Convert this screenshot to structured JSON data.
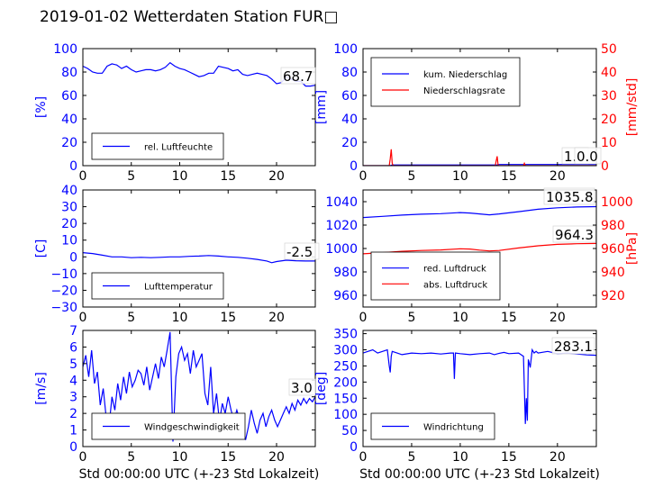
{
  "title": "2019-01-02 Wetterdaten Station FUR□",
  "colors": {
    "primary": "#0000ff",
    "secondary": "#ff0000",
    "windspeed_gust": "#8888ff",
    "axis": "#000000"
  },
  "chart_data": [
    {
      "type": "line",
      "xlabel": "",
      "ylabel": "[%]",
      "xlim": [
        0,
        24
      ],
      "ylim": [
        0,
        100
      ],
      "xticks": [
        "0",
        "5",
        "10",
        "15",
        "20"
      ],
      "yticks": [
        "0",
        "20",
        "40",
        "60",
        "80",
        "100"
      ],
      "legend": [
        "rel. Luftfeuchte"
      ],
      "legend_position": "lower-left",
      "last_value_label": "68.7",
      "series": [
        {
          "name": "rel. Luftfeuchte",
          "axis": "left",
          "color": "#0000ff",
          "x": [
            0,
            0.5,
            1,
            1.5,
            2,
            2.5,
            3,
            3.5,
            4,
            4.5,
            5,
            5.5,
            6,
            6.5,
            7,
            7.5,
            8,
            8.5,
            9,
            9.5,
            10,
            10.5,
            11,
            11.5,
            12,
            12.5,
            13,
            13.5,
            14,
            14.5,
            15,
            15.5,
            16,
            16.5,
            17,
            17.5,
            18,
            18.5,
            19,
            19.5,
            20,
            20.5,
            21,
            21.5,
            22,
            22.5,
            23,
            23.5,
            24
          ],
          "y": [
            85,
            83,
            80,
            79,
            79,
            85,
            87,
            86,
            83,
            85,
            82,
            80,
            81,
            82,
            82,
            81,
            82,
            84,
            88,
            85,
            83,
            82,
            80,
            78,
            76,
            77,
            79,
            79,
            85,
            84,
            83,
            81,
            82,
            78,
            77,
            78,
            79,
            78,
            77,
            74,
            70,
            71,
            76,
            74,
            72,
            72,
            68,
            68,
            68.7
          ]
        }
      ]
    },
    {
      "type": "line",
      "xlabel": "",
      "ylabel": "[mm]",
      "ylabel_right": "[mm/std]",
      "xlim": [
        0,
        24
      ],
      "ylim": [
        0,
        100
      ],
      "ylim_right": [
        0,
        50
      ],
      "xticks": [
        "0",
        "5",
        "10",
        "15",
        "20"
      ],
      "yticks": [
        "0",
        "20",
        "40",
        "60",
        "80",
        "100"
      ],
      "yticks_right": [
        "0",
        "10",
        "20",
        "30",
        "40",
        "50"
      ],
      "legend": [
        "kum. Niederschlag",
        "Niederschlagsrate"
      ],
      "legend_position": "top-left",
      "last_value_label": "1.0",
      "last_value_label_right": "0.0",
      "series": [
        {
          "name": "kum. Niederschlag",
          "axis": "left",
          "color": "#0000ff",
          "x": [
            0,
            2.8,
            3.0,
            13.8,
            14.0,
            24
          ],
          "y": [
            0,
            0,
            0.6,
            0.6,
            1.0,
            1.0
          ]
        },
        {
          "name": "Niederschlagsrate",
          "axis": "right",
          "color": "#ff0000",
          "x": [
            0,
            2.7,
            2.8,
            2.9,
            3.0,
            3.1,
            3.2,
            3.4,
            13.6,
            13.7,
            13.8,
            13.9,
            14.0,
            16.5,
            16.6,
            16.7,
            24
          ],
          "y": [
            0,
            0,
            3,
            7,
            1,
            0,
            0,
            0,
            0,
            2,
            4,
            0,
            0,
            0,
            1,
            0,
            0
          ]
        }
      ]
    },
    {
      "type": "line",
      "xlabel": "",
      "ylabel": "[C]",
      "xlim": [
        0,
        24
      ],
      "ylim": [
        -30,
        40
      ],
      "xticks": [
        "0",
        "5",
        "10",
        "15",
        "20"
      ],
      "yticks": [
        "−30",
        "−20",
        "−10",
        "0",
        "10",
        "20",
        "30",
        "40"
      ],
      "legend": [
        "Lufttemperatur"
      ],
      "legend_position": "lower-left",
      "last_value_label": "-2.5",
      "series": [
        {
          "name": "Lufttemperatur",
          "axis": "left",
          "color": "#0000ff",
          "x": [
            0,
            1,
            2,
            3,
            4,
            5,
            6,
            7,
            8,
            9,
            10,
            11,
            12,
            13,
            14,
            15,
            16,
            17,
            18,
            19,
            19.5,
            20,
            21,
            22,
            23,
            24
          ],
          "y": [
            2.5,
            2,
            1,
            0,
            0,
            -0.5,
            -0.3,
            -0.5,
            -0.3,
            0,
            0,
            0.3,
            0.5,
            0.8,
            0.5,
            0,
            -0.3,
            -0.8,
            -1.5,
            -2.5,
            -3.5,
            -2.8,
            -2,
            -2.3,
            -2.5,
            -2.5
          ]
        }
      ]
    },
    {
      "type": "line",
      "xlabel": "",
      "ylabel": "",
      "ylabel_right": "[hPa]",
      "xlim": [
        0,
        24
      ],
      "ylim": [
        950,
        1050
      ],
      "ylim_right": [
        910,
        1010
      ],
      "xticks": [
        "0",
        "5",
        "10",
        "15",
        "20"
      ],
      "yticks": [
        "960",
        "980",
        "1000",
        "1020",
        "1040"
      ],
      "yticks_right": [
        "920",
        "940",
        "960",
        "980",
        "1000"
      ],
      "legend": [
        "red. Luftdruck",
        "abs. Luftdruck"
      ],
      "legend_position": "lower-left",
      "last_value_label": "1035.8",
      "last_value_label_right": "964.3",
      "series": [
        {
          "name": "red. Luftdruck",
          "axis": "left",
          "color": "#0000ff",
          "x": [
            0,
            2,
            4,
            6,
            8,
            10,
            11,
            12,
            13,
            14,
            16,
            18,
            20,
            22,
            24
          ],
          "y": [
            1026.5,
            1027.5,
            1028.5,
            1029.3,
            1029.8,
            1030.7,
            1030.3,
            1029.5,
            1028.8,
            1029.5,
            1031.5,
            1033.5,
            1034.8,
            1035.5,
            1035.8
          ]
        },
        {
          "name": "abs. Luftdruck",
          "axis": "right",
          "color": "#ff0000",
          "x": [
            0,
            2,
            4,
            6,
            8,
            10,
            11,
            12,
            13,
            14,
            16,
            18,
            20,
            22,
            24
          ],
          "y": [
            955.5,
            956.5,
            957.6,
            958.3,
            958.8,
            959.8,
            959.5,
            958.6,
            957.9,
            958.3,
            960.5,
            962.3,
            963.5,
            964.1,
            964.3
          ]
        }
      ]
    },
    {
      "type": "line",
      "xlabel": "Std 00:00:00 UTC (+-23 Std Lokalzeit)",
      "ylabel": "[m/s]",
      "xlim": [
        0,
        24
      ],
      "ylim": [
        0,
        7
      ],
      "xticks": [
        "0",
        "5",
        "10",
        "15",
        "20"
      ],
      "yticks": [
        "0",
        "1",
        "2",
        "3",
        "4",
        "5",
        "6",
        "7"
      ],
      "legend": [
        "Windgeschwindigkeit"
      ],
      "legend_position": "lower-left",
      "last_value_label": "3.0",
      "series": [
        {
          "name": "Windgeschwindigkeit",
          "axis": "left",
          "color": "#0000ff",
          "x": [
            0,
            0.3,
            0.6,
            0.9,
            1.2,
            1.5,
            1.8,
            2.1,
            2.4,
            2.7,
            3.0,
            3.3,
            3.6,
            3.9,
            4.2,
            4.5,
            4.8,
            5.1,
            5.4,
            5.7,
            6.0,
            6.3,
            6.6,
            6.9,
            7.2,
            7.5,
            7.8,
            8.1,
            8.4,
            8.7,
            9.0,
            9.3,
            9.6,
            9.9,
            10.2,
            10.5,
            10.8,
            11.1,
            11.4,
            11.7,
            12.0,
            12.3,
            12.6,
            12.9,
            13.2,
            13.5,
            13.8,
            14.1,
            14.4,
            14.7,
            15.0,
            15.3,
            15.6,
            15.9,
            16.2,
            16.5,
            16.8,
            17.1,
            17.4,
            17.7,
            18.0,
            18.3,
            18.6,
            18.9,
            19.2,
            19.5,
            19.8,
            20.1,
            20.4,
            20.7,
            21.0,
            21.3,
            21.6,
            21.9,
            22.2,
            22.5,
            22.8,
            23.1,
            23.4,
            23.7,
            24
          ],
          "y": [
            4.8,
            5.5,
            4.2,
            5.8,
            3.8,
            4.5,
            2.5,
            3.5,
            1.8,
            1.2,
            3.0,
            2.2,
            3.8,
            2.8,
            4.2,
            3.2,
            4.5,
            3.6,
            4.0,
            4.6,
            4.4,
            3.7,
            4.8,
            3.4,
            4.2,
            5.0,
            4.1,
            5.4,
            4.8,
            5.8,
            6.9,
            0.3,
            4.2,
            5.6,
            6.0,
            5.2,
            5.6,
            4.4,
            5.8,
            4.8,
            5.2,
            5.6,
            3.2,
            2.5,
            4.8,
            2.0,
            3.2,
            1.5,
            2.6,
            2.0,
            3.0,
            2.2,
            1.6,
            2.2,
            1.6,
            1.0,
            0.4,
            1.2,
            2.2,
            1.4,
            0.8,
            1.6,
            2.0,
            1.2,
            1.8,
            2.2,
            1.6,
            1.2,
            1.6,
            2.0,
            2.4,
            2.0,
            2.6,
            2.2,
            2.8,
            2.5,
            2.9,
            2.6,
            2.9,
            2.7,
            3.0
          ]
        }
      ]
    },
    {
      "type": "line",
      "xlabel": "Std 00:00:00 UTC (+-23 Std Lokalzeit)",
      "ylabel": "[deg]",
      "xlim": [
        0,
        24
      ],
      "ylim": [
        0,
        360
      ],
      "xticks": [
        "0",
        "5",
        "10",
        "15",
        "20"
      ],
      "yticks": [
        "0",
        "50",
        "100",
        "150",
        "200",
        "250",
        "300",
        "350"
      ],
      "legend": [
        "Windrichtung"
      ],
      "legend_position": "lower-left",
      "last_value_label": "283.1",
      "series": [
        {
          "name": "Windrichtung",
          "axis": "left",
          "color": "#0000ff",
          "x": [
            0,
            0.5,
            1,
            1.5,
            2,
            2.5,
            2.7,
            2.8,
            2.9,
            3.0,
            3.5,
            4,
            5,
            6,
            7,
            8,
            9,
            9.3,
            9.4,
            9.5,
            10,
            11,
            12,
            13,
            13.5,
            14,
            14.5,
            15,
            16,
            16.5,
            16.7,
            16.8,
            16.9,
            17.0,
            17.2,
            17.4,
            17.6,
            17.8,
            18,
            19,
            20,
            21,
            22,
            23,
            24
          ],
          "y": [
            290,
            295,
            300,
            290,
            295,
            300,
            250,
            230,
            280,
            295,
            290,
            285,
            290,
            288,
            290,
            287,
            290,
            290,
            210,
            290,
            288,
            285,
            288,
            290,
            285,
            289,
            292,
            288,
            290,
            280,
            70,
            150,
            80,
            270,
            245,
            300,
            290,
            295,
            290,
            295,
            288,
            290,
            287,
            284,
            283.1
          ]
        }
      ]
    }
  ]
}
